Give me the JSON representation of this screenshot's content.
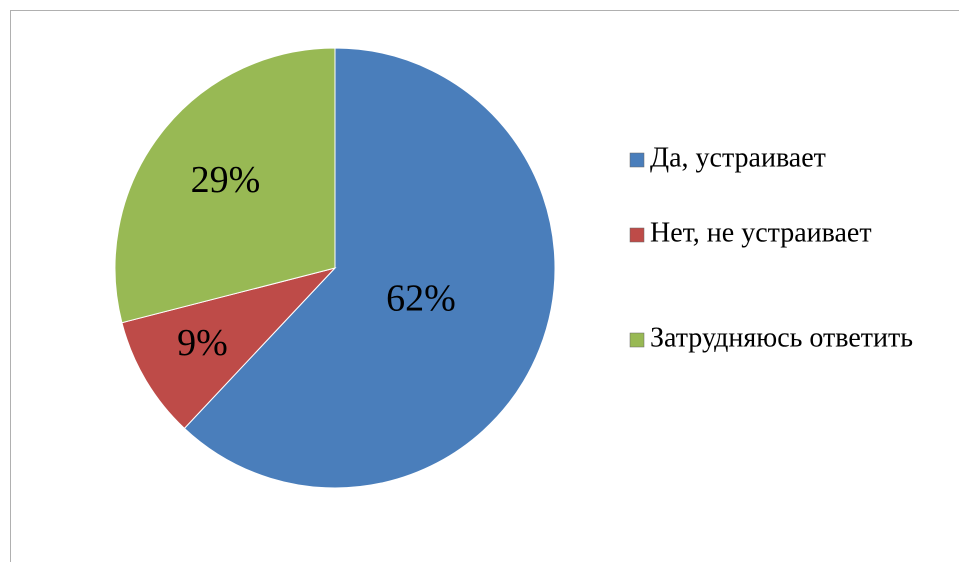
{
  "chart_data": {
    "type": "pie",
    "categories": [
      "Да, устраивает",
      "Нет, не устраивает",
      "Затрудняюсь ответить"
    ],
    "values": [
      62,
      9,
      29
    ],
    "value_labels": [
      "62%",
      "9%",
      "29%"
    ],
    "colors": [
      "#4a7ebb",
      "#be4b48",
      "#98b954"
    ],
    "legend": "right"
  }
}
